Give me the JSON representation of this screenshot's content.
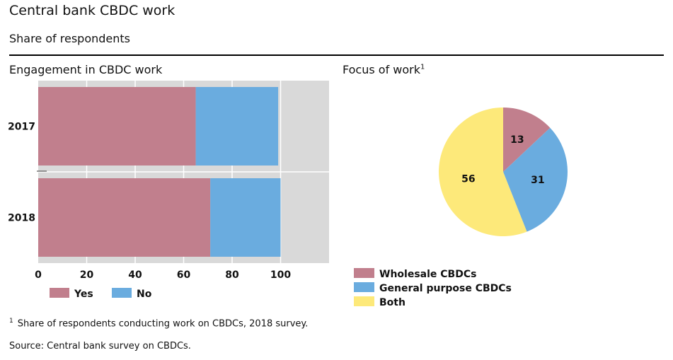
{
  "header": {
    "title": "Central bank CBDC work",
    "subtitle": "Share of respondents"
  },
  "colors": {
    "yes": "#c17f8d",
    "no": "#6aacdf",
    "wholesale": "#c17f8d",
    "general": "#6aacdf",
    "both": "#fde97a",
    "plot_bg": "#d9d9d9",
    "grid": "#ffffff"
  },
  "chart_data": [
    {
      "type": "bar",
      "orientation": "horizontal",
      "stacked": true,
      "title": "Engagement in CBDC work",
      "categories": [
        "2017",
        "2018"
      ],
      "series": [
        {
          "name": "Yes",
          "values": [
            65,
            71
          ]
        },
        {
          "name": "No",
          "values": [
            34,
            29
          ]
        }
      ],
      "xlim": [
        0,
        120
      ],
      "xticks": [
        0,
        20,
        40,
        60,
        80,
        100
      ],
      "xtick_labels": [
        "0",
        "20",
        "40",
        "60",
        "80",
        "100"
      ],
      "grid": true,
      "legend": [
        "Yes",
        "No"
      ],
      "legend_position": "bottom"
    },
    {
      "type": "pie",
      "title": "Focus of work",
      "title_footnote": "1",
      "labels": [
        "Wholesale CBDCs",
        "General purpose CBDCs",
        "Both"
      ],
      "values": [
        13,
        31,
        56
      ],
      "data_labels": [
        "13",
        "31",
        "56"
      ],
      "start": "top",
      "direction": "clockwise",
      "legend_position": "bottom-left"
    }
  ],
  "footer": {
    "footnote_marker": "1",
    "footnote": "Share of respondents conducting work on CBDCs, 2018 survey.",
    "source": "Source: Central bank survey on CBDCs."
  }
}
